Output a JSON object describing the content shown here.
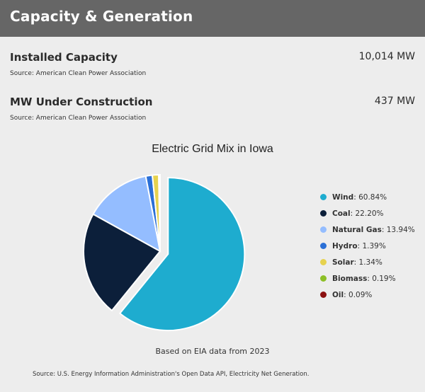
{
  "header": {
    "title": "Capacity & Generation"
  },
  "installed_capacity": {
    "label": "Installed Capacity",
    "value": "10,014 MW",
    "source": "Source: American Clean Power Association"
  },
  "under_construction": {
    "label": "MW Under Construction",
    "value": "437 MW",
    "source": "Source: American Clean Power Association"
  },
  "chart_note": "Based on EIA data from 2023",
  "chart_source": "Source: U.S. Energy Information Administration's Open Data API, Electricity Net Generation.",
  "chart_data": {
    "type": "pie",
    "title": "Electric Grid Mix in Iowa",
    "legend_position": "right",
    "exploded_slice": "Wind",
    "slices": [
      {
        "name": "Wind",
        "value": 60.84,
        "label": "60.84%",
        "color": "#1eaccf"
      },
      {
        "name": "Coal",
        "value": 22.2,
        "label": "22.20%",
        "color": "#0c1f3a"
      },
      {
        "name": "Natural Gas",
        "value": 13.94,
        "label": "13.94%",
        "color": "#94bdff"
      },
      {
        "name": "Hydro",
        "value": 1.39,
        "label": "1.39%",
        "color": "#2a6fd6"
      },
      {
        "name": "Solar",
        "value": 1.34,
        "label": "1.34%",
        "color": "#e6d24e"
      },
      {
        "name": "Biomass",
        "value": 0.19,
        "label": "0.19%",
        "color": "#8cbf26"
      },
      {
        "name": "Oil",
        "value": 0.09,
        "label": "0.09%",
        "color": "#8b1010"
      }
    ]
  }
}
